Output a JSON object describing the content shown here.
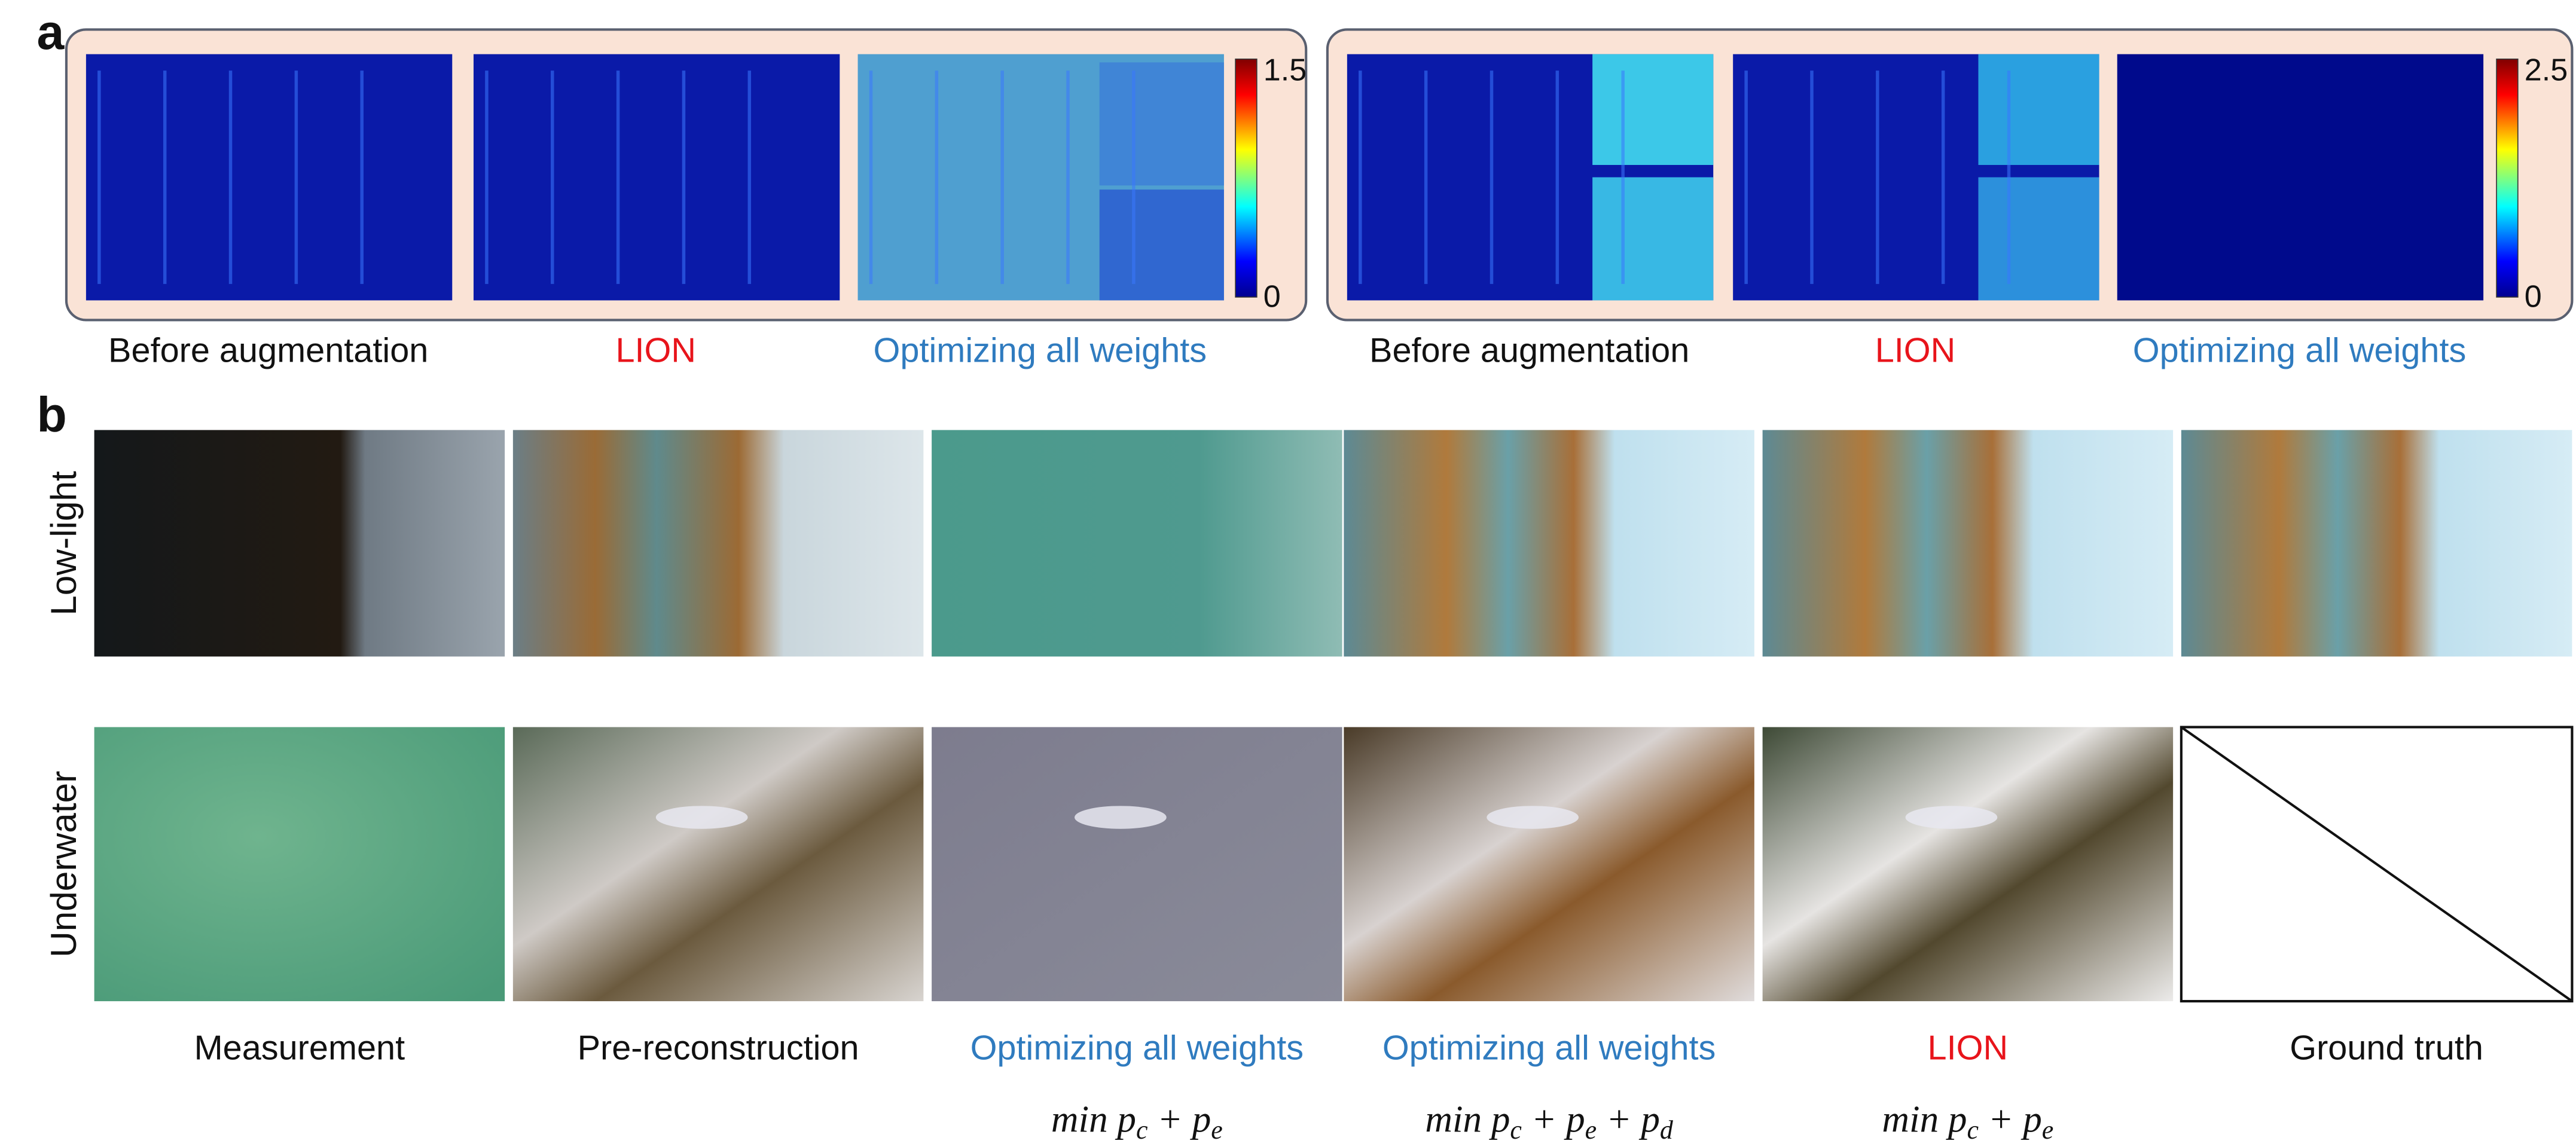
{
  "panel_a": {
    "label": "a",
    "groups": [
      {
        "captions": [
          "Before augmentation",
          "LION",
          "Optimizing all weights"
        ],
        "colorbar": [
          "1.5",
          "0"
        ]
      },
      {
        "captions": [
          "Before augmentation",
          "LION",
          "Optimizing all weights"
        ],
        "colorbar": [
          "2.5",
          "0"
        ]
      }
    ]
  },
  "panel_b": {
    "label": "b",
    "rows": [
      "Low-light",
      "Underwater"
    ],
    "columns": [
      {
        "caption": "Measurement"
      },
      {
        "caption": "Pre-reconstruction"
      },
      {
        "caption": "Optimizing all weights",
        "formula": [
          {
            "t": "min p"
          },
          {
            "sub": "c"
          },
          {
            "t": " + p"
          },
          {
            "sub": "e"
          }
        ]
      },
      {
        "caption": "Optimizing all weights",
        "formula": [
          {
            "t": "min p"
          },
          {
            "sub": "c"
          },
          {
            "t": " + p"
          },
          {
            "sub": "e"
          },
          {
            "t": " + p"
          },
          {
            "sub": "d"
          }
        ]
      },
      {
        "caption": "LION",
        "formula": [
          {
            "t": "min p"
          },
          {
            "sub": "c"
          },
          {
            "t": " + p"
          },
          {
            "sub": "e"
          }
        ]
      },
      {
        "caption": "Ground truth"
      }
    ]
  }
}
